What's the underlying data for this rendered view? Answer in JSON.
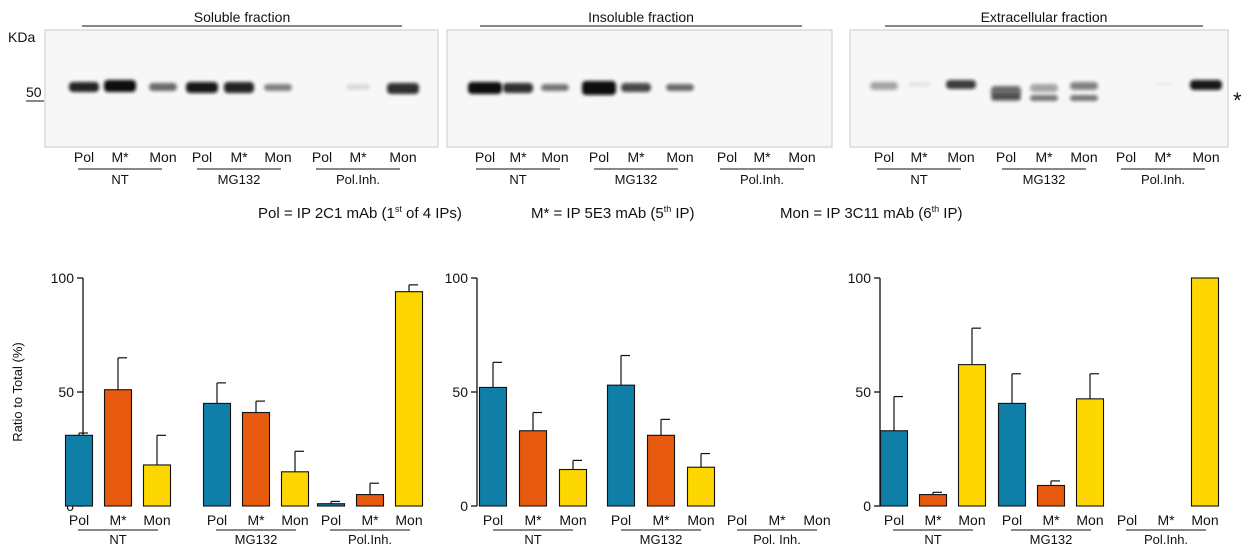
{
  "blots": [
    {
      "title": "Soluble fraction",
      "lanes": [
        "Pol",
        "M*",
        "Mon",
        "Pol",
        "M*",
        "Mon",
        "Pol",
        "M*",
        "Mon"
      ]
    },
    {
      "title": "Insoluble fraction",
      "lanes": [
        "Pol",
        "M*",
        "Mon",
        "Pol",
        "M*",
        "Mon",
        "Pol",
        "M*",
        "Mon"
      ]
    },
    {
      "title": "Extracellular fraction",
      "lanes": [
        "Pol",
        "M*",
        "Mon",
        "Pol",
        "M*",
        "Mon",
        "Pol",
        "M*",
        "Mon"
      ]
    }
  ],
  "blot_groups": [
    "NT",
    "MG132",
    "Pol.Inh."
  ],
  "kda_label": "KDa",
  "marker_label": "50",
  "asterisk": "*",
  "legend": {
    "pol_a": "Pol = IP 2C1 mAb  (1",
    "pol_sup": "st",
    "pol_b": " of 4  IPs)",
    "m_a": "M* = IP 5E3 mAb  (5",
    "m_sup": "th",
    "m_b": " IP)",
    "mon_a": "Mon = IP 3C11 mAb  (6",
    "mon_sup": "th",
    "mon_b": " IP)"
  },
  "colors": {
    "Pol": "#0f7fa8",
    "M*": "#e85a0e",
    "Mon": "#ffd700"
  },
  "chart_data": [
    {
      "type": "bar",
      "ylabel": "Ratio to Total (%)",
      "ylim": [
        0,
        100
      ],
      "yticks": [
        0,
        50,
        100
      ],
      "categories": [
        "Pol",
        "M*",
        "Mon",
        "Pol",
        "M*",
        "Mon",
        "Pol",
        "M*",
        "Mon"
      ],
      "groups": [
        "NT",
        "MG132",
        "Pol.Inh."
      ],
      "values": [
        31,
        51,
        18,
        45,
        41,
        15,
        1,
        5,
        94
      ],
      "errors": [
        1,
        14,
        13,
        9,
        5,
        9,
        1,
        5,
        3
      ]
    },
    {
      "type": "bar",
      "ylabel": "",
      "ylim": [
        0,
        100
      ],
      "yticks": [
        0,
        50,
        100
      ],
      "categories": [
        "Pol",
        "M*",
        "Mon",
        "Pol",
        "M*",
        "Mon",
        "Pol",
        "M*",
        "Mon"
      ],
      "groups": [
        "NT",
        "MG132",
        "Pol. Inh."
      ],
      "values": [
        52,
        33,
        16,
        53,
        31,
        17,
        0,
        0,
        0
      ],
      "errors": [
        11,
        8,
        4,
        13,
        7,
        6,
        0,
        0,
        0
      ]
    },
    {
      "type": "bar",
      "ylabel": "",
      "ylim": [
        0,
        100
      ],
      "yticks": [
        0,
        50,
        100
      ],
      "categories": [
        "Pol",
        "M*",
        "Mon",
        "Pol",
        "M*",
        "Mon",
        "Pol",
        "M*",
        "Mon"
      ],
      "groups": [
        "NT",
        "MG132",
        "Pol.Inh."
      ],
      "values": [
        33,
        5,
        62,
        45,
        9,
        47,
        0,
        0,
        100
      ],
      "errors": [
        15,
        1,
        16,
        13,
        2,
        11,
        0,
        0,
        0
      ]
    }
  ]
}
